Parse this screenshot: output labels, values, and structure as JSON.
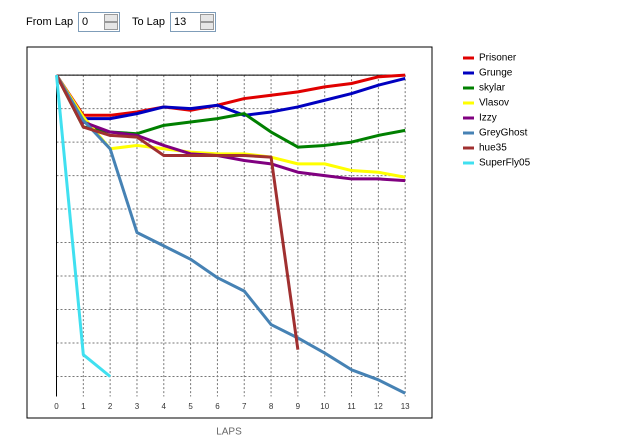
{
  "controls": {
    "from_label": "From Lap",
    "from_value": "0",
    "to_label": "To Lap",
    "to_value": "13"
  },
  "chart_data": {
    "type": "line",
    "x_label": "LAPS",
    "x": [
      0,
      1,
      2,
      3,
      4,
      5,
      6,
      7,
      8,
      9,
      10,
      11,
      12,
      13
    ],
    "xlim": [
      -1.1,
      14.0
    ],
    "xticks": [
      0,
      1,
      2,
      3,
      4,
      5,
      6,
      7,
      8,
      9,
      10,
      11,
      12,
      13
    ],
    "ylim": [
      -0.84,
      10.24
    ],
    "y_inverted": true,
    "ygrid": [
      0,
      1,
      2,
      3,
      4,
      5,
      6,
      7,
      8,
      9
    ],
    "grid": true,
    "series": [
      {
        "name": "Prisoner",
        "color": "#e00000",
        "values": [
          0,
          1.2,
          1.2,
          1.1,
          0.95,
          1.05,
          0.9,
          0.7,
          0.6,
          0.5,
          0.35,
          0.25,
          0.05,
          0
        ]
      },
      {
        "name": "Grunge",
        "color": "#0000c0",
        "values": [
          0,
          1.3,
          1.3,
          1.15,
          0.95,
          1.0,
          0.9,
          1.2,
          1.1,
          0.95,
          0.75,
          0.55,
          0.3,
          0.1
        ]
      },
      {
        "name": "skylar",
        "color": "#008000",
        "values": [
          0,
          1.55,
          1.7,
          1.75,
          1.5,
          1.4,
          1.3,
          1.15,
          1.7,
          2.15,
          2.1,
          2.0,
          1.8,
          1.65
        ]
      },
      {
        "name": "Vlasov",
        "color": "#ffff00",
        "values": [
          0,
          1.25,
          2.2,
          2.1,
          2.2,
          2.3,
          2.35,
          2.35,
          2.45,
          2.65,
          2.65,
          2.85,
          2.9,
          3.05
        ]
      },
      {
        "name": "Izzy",
        "color": "#800080",
        "values": [
          0,
          1.4,
          1.7,
          1.8,
          2.1,
          2.35,
          2.4,
          2.55,
          2.65,
          2.9,
          3.0,
          3.1,
          3.1,
          3.15
        ]
      },
      {
        "name": "GreyGhost",
        "color": "#4682b4",
        "values": [
          0,
          1.35,
          2.2,
          4.7,
          5.1,
          5.5,
          6.05,
          6.45,
          7.45,
          7.85,
          8.3,
          8.8,
          9.1,
          9.5
        ]
      },
      {
        "name": "hue35",
        "color": "#a03030",
        "values": [
          0,
          1.55,
          1.8,
          1.85,
          2.4,
          2.4,
          2.4,
          2.4,
          2.45,
          8.2,
          null,
          null,
          null,
          null
        ]
      },
      {
        "name": "SuperFly05",
        "color": "#40e0f0",
        "values": [
          0,
          8.35,
          9.0,
          null,
          null,
          null,
          null,
          null,
          null,
          null,
          null,
          null,
          null,
          null
        ]
      }
    ],
    "legend": "right"
  }
}
